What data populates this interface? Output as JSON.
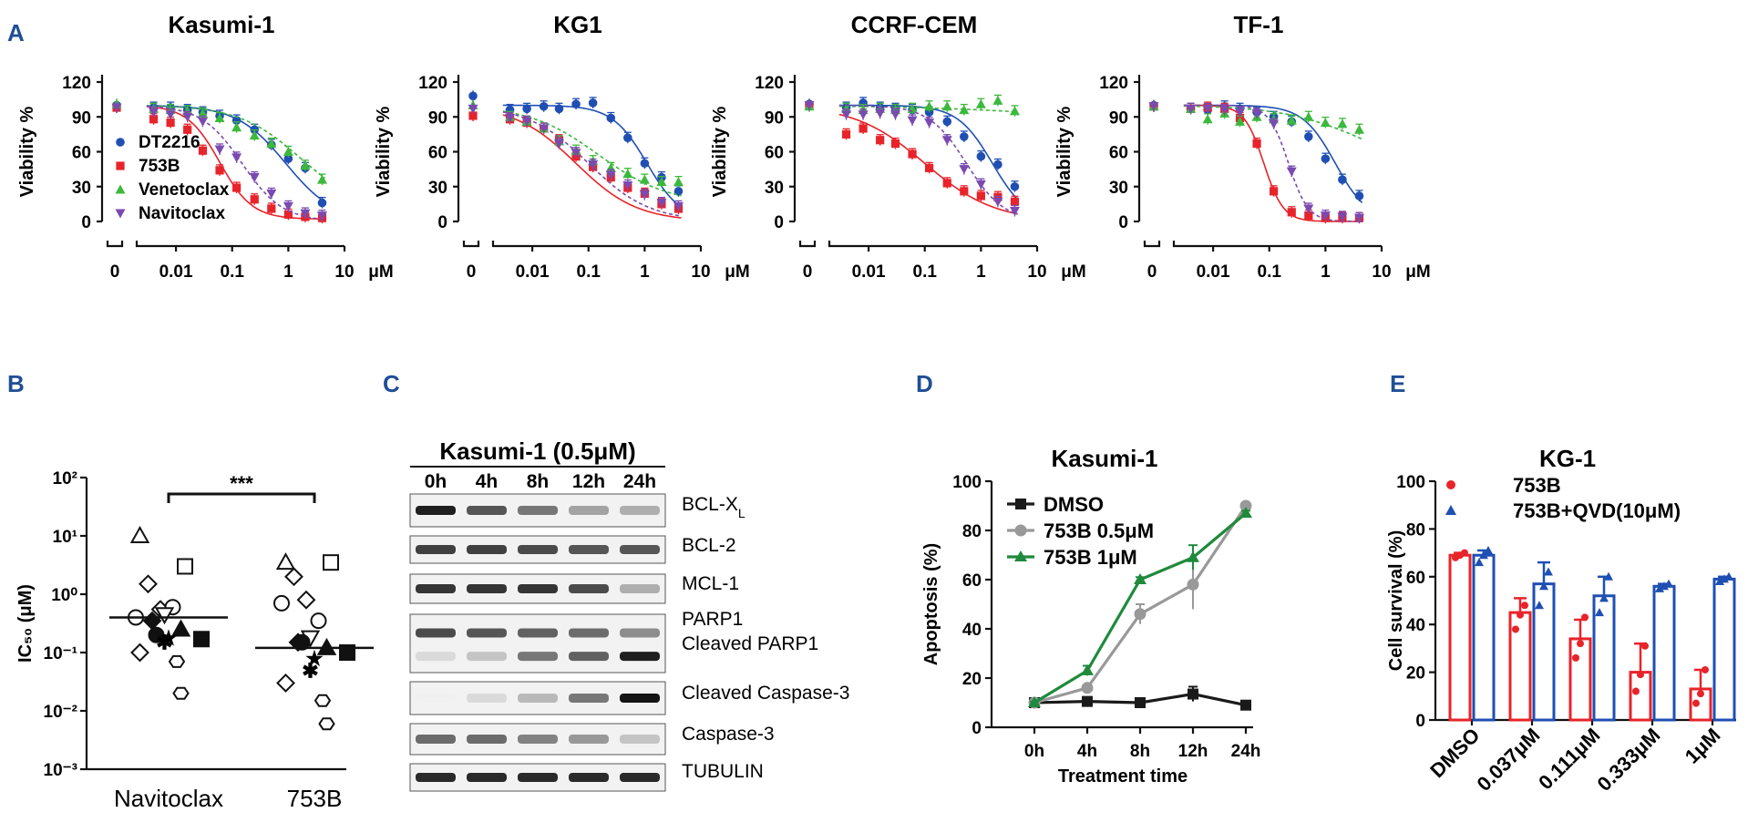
{
  "panel_labels": {
    "A": "A",
    "B": "B",
    "C": "C",
    "D": "D",
    "E": "E"
  },
  "colors": {
    "DT2216": "#1f4fb3",
    "753B": "#e8232a",
    "Venetoclax": "#3cb83c",
    "Navitoclax": "#7a4ab0",
    "dmso": "#1a1a1a",
    "gray": "#999999",
    "green": "#1f8a3c"
  },
  "chart_data": [
    {
      "type": "scatter",
      "id": "A1",
      "title": "Kasumi-1",
      "ylabel": "Viability %",
      "ylim": [
        0,
        120
      ],
      "yticks": [
        "0",
        "30",
        "60",
        "90",
        "120"
      ],
      "xticks": [
        "0",
        "0.01",
        "0.1",
        "1",
        "10"
      ],
      "xunit": "μM",
      "legend": [
        "DT2216",
        "753B",
        "Venetoclax",
        "Navitoclax"
      ],
      "series": [
        {
          "name": "DT2216",
          "ec50": 0.9,
          "hill": 1.0,
          "top": 100,
          "bottom": 0,
          "zero": 100,
          "x": [
            0.004,
            0.008,
            0.016,
            0.03,
            0.06,
            0.12,
            0.25,
            0.5,
            1,
            2,
            4
          ],
          "y": [
            98,
            98,
            96,
            94,
            91,
            87,
            79,
            66,
            54,
            46,
            16
          ]
        },
        {
          "name": "753B",
          "ec50": 0.06,
          "hill": 1.5,
          "top": 100,
          "bottom": 2,
          "zero": 98,
          "x": [
            0.004,
            0.008,
            0.016,
            0.03,
            0.06,
            0.12,
            0.25,
            0.5,
            1,
            2,
            4
          ],
          "y": [
            88,
            85,
            79,
            61,
            44,
            29,
            19,
            11,
            6,
            4,
            3
          ]
        },
        {
          "name": "Venetoclax",
          "ec50": 1.6,
          "hill": 0.8,
          "top": 100,
          "bottom": 10,
          "zero": 101,
          "x": [
            0.004,
            0.008,
            0.016,
            0.03,
            0.06,
            0.12,
            0.25,
            0.5,
            1,
            2,
            4
          ],
          "y": [
            97,
            96,
            95,
            93,
            89,
            81,
            74,
            67,
            60,
            48,
            36
          ]
        },
        {
          "name": "Navitoclax",
          "ec50": 0.15,
          "hill": 1.2,
          "top": 100,
          "bottom": 0,
          "zero": 98,
          "x": [
            0.004,
            0.008,
            0.016,
            0.03,
            0.06,
            0.12,
            0.25,
            0.5,
            1,
            2,
            4
          ],
          "y": [
            94,
            92,
            90,
            86,
            62,
            55,
            38,
            24,
            13,
            7,
            5
          ]
        }
      ]
    },
    {
      "type": "scatter",
      "id": "A2",
      "title": "KG1",
      "ylabel": "Viability %",
      "ylim": [
        0,
        120
      ],
      "yticks": [
        "0",
        "30",
        "60",
        "90",
        "120"
      ],
      "xticks": [
        "0",
        "0.01",
        "0.1",
        "1",
        "10"
      ],
      "xunit": "μM",
      "series": [
        {
          "name": "DT2216",
          "ec50": 1.1,
          "hill": 1.4,
          "top": 100,
          "bottom": 0,
          "zero": 108,
          "x": [
            0.004,
            0.008,
            0.016,
            0.03,
            0.06,
            0.12,
            0.25,
            0.5,
            1,
            2,
            4
          ],
          "y": [
            96,
            97,
            99,
            97,
            101,
            102,
            89,
            72,
            50,
            38,
            26
          ]
        },
        {
          "name": "753B",
          "ec50": 0.06,
          "hill": 0.8,
          "top": 100,
          "bottom": 0,
          "zero": 91,
          "x": [
            0.004,
            0.008,
            0.016,
            0.03,
            0.06,
            0.12,
            0.25,
            0.5,
            1,
            2,
            4
          ],
          "y": [
            88,
            85,
            80,
            70,
            56,
            47,
            38,
            29,
            24,
            15,
            11
          ]
        },
        {
          "name": "Venetoclax",
          "ec50": 0.15,
          "hill": 0.7,
          "top": 100,
          "bottom": 15,
          "zero": 100,
          "x": [
            0.004,
            0.008,
            0.016,
            0.03,
            0.06,
            0.12,
            0.25,
            0.5,
            1,
            2,
            4
          ],
          "y": [
            90,
            86,
            80,
            69,
            61,
            52,
            46,
            41,
            36,
            34,
            34
          ]
        },
        {
          "name": "Navitoclax",
          "ec50": 0.1,
          "hill": 0.8,
          "top": 100,
          "bottom": 0,
          "zero": 97,
          "x": [
            0.004,
            0.008,
            0.016,
            0.03,
            0.06,
            0.12,
            0.25,
            0.5,
            1,
            2,
            4
          ],
          "y": [
            89,
            86,
            80,
            67,
            59,
            49,
            40,
            31,
            23,
            16,
            13
          ]
        }
      ]
    },
    {
      "type": "scatter",
      "id": "A3",
      "title": "CCRF-CEM",
      "ylabel": "Viability %",
      "ylim": [
        0,
        120
      ],
      "yticks": [
        "0",
        "30",
        "60",
        "90",
        "120"
      ],
      "xticks": [
        "0",
        "0.01",
        "0.1",
        "1",
        "10"
      ],
      "xunit": "μM",
      "series": [
        {
          "name": "DT2216",
          "ec50": 1.6,
          "hill": 1.4,
          "top": 100,
          "bottom": 0,
          "zero": 101,
          "x": [
            0.004,
            0.008,
            0.016,
            0.03,
            0.06,
            0.12,
            0.25,
            0.5,
            1,
            2,
            4
          ],
          "y": [
            98,
            102,
            98,
            97,
            96,
            94,
            86,
            73,
            56,
            49,
            30
          ]
        },
        {
          "name": "753B",
          "ec50": 0.1,
          "hill": 0.7,
          "top": 100,
          "bottom": 0,
          "zero": 100,
          "x": [
            0.004,
            0.008,
            0.016,
            0.03,
            0.06,
            0.12,
            0.25,
            0.5,
            1,
            2,
            4
          ],
          "y": [
            75,
            80,
            70,
            67,
            58,
            46,
            33,
            26,
            22,
            21,
            17
          ]
        },
        {
          "name": "Venetoclax",
          "ec50": 100,
          "hill": 0.3,
          "top": 100,
          "bottom": 80,
          "zero": 99,
          "x": [
            0.004,
            0.008,
            0.016,
            0.03,
            0.06,
            0.12,
            0.25,
            0.5,
            1,
            2,
            4
          ],
          "y": [
            97,
            96,
            97,
            96,
            97,
            99,
            99,
            96,
            101,
            104,
            95
          ]
        },
        {
          "name": "Navitoclax",
          "ec50": 0.55,
          "hill": 1.3,
          "top": 100,
          "bottom": 0,
          "zero": 100,
          "x": [
            0.004,
            0.008,
            0.016,
            0.03,
            0.06,
            0.12,
            0.25,
            0.5,
            1,
            2,
            4
          ],
          "y": [
            92,
            92,
            93,
            92,
            87,
            85,
            70,
            45,
            32,
            17,
            9
          ]
        }
      ]
    },
    {
      "type": "scatter",
      "id": "A4",
      "title": "TF-1",
      "ylabel": "Viability %",
      "ylim": [
        0,
        120
      ],
      "yticks": [
        "0",
        "30",
        "60",
        "90",
        "120"
      ],
      "xticks": [
        "0",
        "0.01",
        "0.1",
        "1",
        "10"
      ],
      "xunit": "μM",
      "series": [
        {
          "name": "DT2216",
          "ec50": 1.5,
          "hill": 1.5,
          "top": 100,
          "bottom": 0,
          "zero": 100,
          "x": [
            0.004,
            0.008,
            0.016,
            0.03,
            0.06,
            0.12,
            0.25,
            0.5,
            1,
            2,
            4
          ],
          "y": [
            97,
            96,
            99,
            97,
            94,
            90,
            86,
            73,
            54,
            36,
            22
          ]
        },
        {
          "name": "753B",
          "ec50": 0.08,
          "hill": 2.5,
          "top": 100,
          "bottom": 0,
          "zero": 99,
          "x": [
            0.004,
            0.008,
            0.016,
            0.03,
            0.06,
            0.12,
            0.25,
            0.5,
            1,
            2,
            4
          ],
          "y": [
            97,
            98,
            97,
            89,
            67,
            26,
            8,
            5,
            3,
            3,
            3
          ]
        },
        {
          "name": "Venetoclax",
          "ec50": 5,
          "hill": 0.6,
          "top": 100,
          "bottom": 40,
          "zero": 99,
          "x": [
            0.004,
            0.008,
            0.016,
            0.03,
            0.06,
            0.12,
            0.25,
            0.5,
            1,
            2,
            4
          ],
          "y": [
            97,
            88,
            93,
            86,
            90,
            88,
            87,
            90,
            85,
            84,
            79
          ]
        },
        {
          "name": "Navitoclax",
          "ec50": 0.22,
          "hill": 2.5,
          "top": 100,
          "bottom": 0,
          "zero": 99,
          "x": [
            0.004,
            0.008,
            0.016,
            0.03,
            0.06,
            0.12,
            0.25,
            0.5,
            1,
            2,
            4
          ],
          "y": [
            97,
            97,
            96,
            94,
            93,
            84,
            43,
            11,
            5,
            4,
            3
          ]
        }
      ]
    },
    {
      "type": "scatter",
      "id": "B",
      "ylabel": "IC₅₀ (μM)",
      "categories": [
        "Navitoclax",
        "753B"
      ],
      "yticks": [
        "10⁻³",
        "10⁻²",
        "10⁻¹",
        "10⁰",
        "10¹",
        "10²"
      ],
      "significance": "***",
      "medians": [
        0.4,
        0.12
      ],
      "series": [
        {
          "name": "Navitoclax",
          "values": [
            10,
            3,
            1.5,
            0.55,
            0.4,
            0.6,
            0.45,
            0.35,
            0.25,
            0.2,
            0.17,
            0.18,
            0.15,
            0.1,
            0.07,
            0.02
          ]
        },
        {
          "name": "753B",
          "values": [
            3.5,
            3.5,
            2,
            0.8,
            0.7,
            0.35,
            0.18,
            0.15,
            0.12,
            0.15,
            0.1,
            0.08,
            0.05,
            0.03,
            0.015,
            0.006
          ]
        }
      ]
    },
    {
      "type": "table",
      "id": "C",
      "title": "Kasumi-1 (0.5μM)",
      "timepoints": [
        "0h",
        "4h",
        "8h",
        "12h",
        "24h"
      ],
      "bands": [
        {
          "label": "BCL-X",
          "sub": "L",
          "intensity": [
            0.95,
            0.7,
            0.55,
            0.35,
            0.3
          ]
        },
        {
          "label": "BCL-2",
          "sub": "",
          "intensity": [
            0.8,
            0.8,
            0.75,
            0.7,
            0.7
          ]
        },
        {
          "label": "MCL-1",
          "sub": "",
          "intensity": [
            0.85,
            0.85,
            0.85,
            0.75,
            0.3
          ]
        },
        {
          "label": "PARP1",
          "sub": "",
          "intensity": [
            0.75,
            0.7,
            0.65,
            0.6,
            0.45
          ]
        },
        {
          "label": "Cleaved PARP1",
          "sub": "",
          "intensity": [
            0.1,
            0.2,
            0.55,
            0.65,
            0.95
          ]
        },
        {
          "label": "Cleaved Caspase-3",
          "sub": "",
          "intensity": [
            0.0,
            0.1,
            0.25,
            0.55,
            1.0
          ]
        },
        {
          "label": "Caspase-3",
          "sub": "",
          "intensity": [
            0.6,
            0.6,
            0.5,
            0.4,
            0.2
          ]
        },
        {
          "label": "TUBULIN",
          "sub": "",
          "intensity": [
            0.9,
            0.9,
            0.9,
            0.9,
            0.9
          ]
        }
      ]
    },
    {
      "type": "line",
      "id": "D",
      "title": "Kasumi-1",
      "xlabel": "Treatment time",
      "ylabel": "Apoptosis (%)",
      "ylim": [
        0,
        100
      ],
      "categories": [
        "0h",
        "4h",
        "8h",
        "12h",
        "24h"
      ],
      "yticks": [
        "0",
        "20",
        "40",
        "60",
        "80",
        "100"
      ],
      "series": [
        {
          "name": "DMSO",
          "values": [
            10,
            10.5,
            10,
            13.5,
            9
          ],
          "errors": [
            0.5,
            0.5,
            0.5,
            3,
            0.5
          ]
        },
        {
          "name": "753B 0.5μM",
          "values": [
            10,
            16,
            46,
            58,
            90
          ],
          "errors": [
            0.5,
            1,
            4,
            10,
            1
          ]
        },
        {
          "name": "753B 1μM",
          "values": [
            10,
            23,
            60,
            69,
            87
          ],
          "errors": [
            0.5,
            2,
            1,
            5,
            1
          ]
        }
      ]
    },
    {
      "type": "bar",
      "id": "E",
      "title": "KG-1",
      "ylabel": "Cell survival (%)",
      "ylim": [
        0,
        100
      ],
      "categories": [
        "DMSO",
        "0.037μM",
        "0.111μM",
        "0.333μM",
        "1μM"
      ],
      "yticks": [
        "0",
        "20",
        "40",
        "60",
        "80",
        "100"
      ],
      "series": [
        {
          "name": "753B",
          "values": [
            69,
            45,
            34,
            20,
            13
          ],
          "errors": [
            1,
            6,
            8,
            12,
            8
          ],
          "points": [
            [
              68,
              69,
              70
            ],
            [
              38,
              44,
              48
            ],
            [
              26,
              32,
              43
            ],
            [
              12,
              19,
              31
            ],
            [
              7,
              11,
              21
            ]
          ]
        },
        {
          "name": "753B+QVD(10μM)",
          "values": [
            69,
            57,
            52,
            56,
            59
          ],
          "errors": [
            2,
            9,
            8,
            1,
            1
          ],
          "points": [
            [
              66,
              69,
              71
            ],
            [
              48,
              56,
              62
            ],
            [
              45,
              51,
              60
            ],
            [
              55,
              56,
              57
            ],
            [
              58,
              59,
              60
            ]
          ]
        }
      ]
    }
  ]
}
